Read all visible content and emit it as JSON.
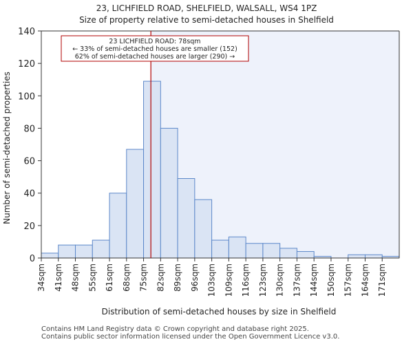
{
  "chart_data": {
    "type": "bar",
    "title_line1": "23, LICHFIELD ROAD, SHELFIELD, WALSALL, WS4 1PZ",
    "title_line2": "Size of property relative to semi-detached houses in Shelfield",
    "xlabel": "Distribution of semi-detached houses by size in Shelfield",
    "ylabel": "Number of semi-detached properties",
    "ylim": [
      0,
      140
    ],
    "yticks": [
      0,
      20,
      40,
      60,
      80,
      100,
      120,
      140
    ],
    "bin_edges": [
      34,
      41,
      48,
      55,
      61,
      68,
      75,
      82,
      89,
      96,
      103,
      109,
      116,
      123,
      130,
      137,
      144,
      150,
      157,
      164,
      171,
      178
    ],
    "categories": [
      "34sqm",
      "41sqm",
      "48sqm",
      "55sqm",
      "61sqm",
      "68sqm",
      "75sqm",
      "82sqm",
      "89sqm",
      "96sqm",
      "103sqm",
      "109sqm",
      "116sqm",
      "123sqm",
      "130sqm",
      "137sqm",
      "144sqm",
      "150sqm",
      "157sqm",
      "164sqm",
      "171sqm"
    ],
    "values": [
      3,
      8,
      8,
      11,
      40,
      67,
      109,
      80,
      49,
      36,
      11,
      13,
      9,
      9,
      6,
      4,
      1,
      0,
      2,
      2,
      1
    ],
    "bar_fill": "#dae4f4",
    "bar_stroke": "#5b87c9",
    "highlight_fill": "#eef2fb",
    "marker": {
      "value": 78,
      "color": "#b00000",
      "label_line1": "23 LICHFIELD ROAD: 78sqm",
      "label_line2": "← 33% of semi-detached houses are smaller (152)",
      "label_line3": "62% of semi-detached houses are larger (290) →"
    }
  },
  "footer": {
    "line1": "Contains HM Land Registry data © Crown copyright and database right 2025.",
    "line2": "Contains public sector information licensed under the Open Government Licence v3.0."
  }
}
